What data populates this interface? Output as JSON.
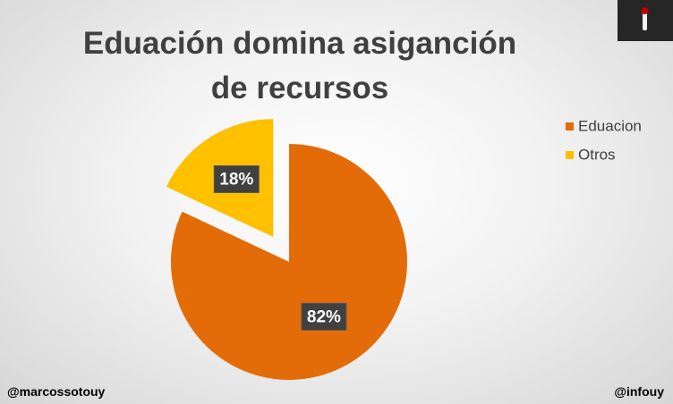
{
  "chart_data": {
    "type": "pie",
    "title": "Eduación domina asiganción de recursos",
    "categories": [
      "Eduacion",
      "Otros"
    ],
    "values": [
      82,
      18
    ],
    "value_labels": [
      "82%",
      "18%"
    ],
    "colors": [
      "#e36c09",
      "#ffc000"
    ],
    "exploded": [
      false,
      true
    ],
    "legend": "right",
    "annotations": [
      "@marcossotouy",
      "@infouy"
    ]
  }
}
